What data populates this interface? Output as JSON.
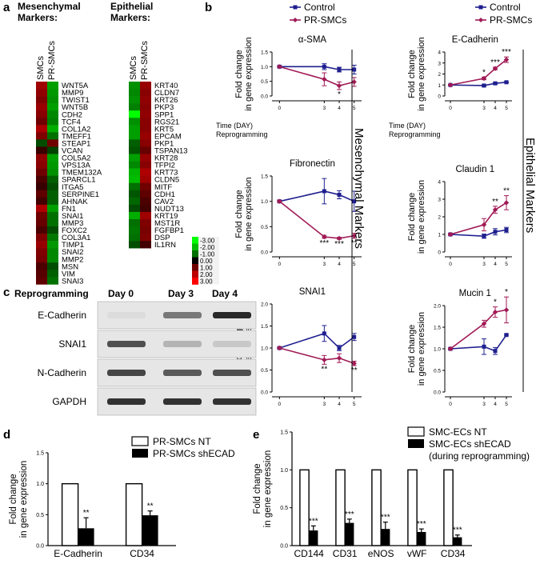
{
  "panel_letters": {
    "a": "a",
    "b": "b",
    "c": "c",
    "d": "d",
    "e": "e"
  },
  "heatmap": {
    "mes_title_1": "Mesenchymal",
    "mes_title_2": "Markers:",
    "epi_title_1": "Epithelial",
    "epi_title_2": "Markers:",
    "col_labels": [
      "SMCs",
      "PR-SMCs"
    ],
    "mes_genes": [
      "WNT5A",
      "MMP9",
      "TWIST1",
      "WNT5B",
      "CDH2",
      "TCF4",
      "COL1A2",
      "TMEFF1",
      "STEAP1",
      "VCAN",
      "COL5A2",
      "VPS13A",
      "TMEM132A",
      "SPARCL1",
      "ITGA5",
      "SERPINE1",
      "AHNAK",
      "FN1",
      "SNAI1",
      "MMP3",
      "FOXC2",
      "COL3A1",
      "TIMP1",
      "SNAI2",
      "MMP2",
      "MSN",
      "VIM",
      "SNAI3"
    ],
    "mes_values": [
      [
        1.6,
        -1.6
      ],
      [
        1.4,
        -1.5
      ],
      [
        1.2,
        -1.4
      ],
      [
        1.5,
        -1.6
      ],
      [
        1.3,
        -1.3
      ],
      [
        1.0,
        -1.2
      ],
      [
        1.8,
        -1.8
      ],
      [
        1.2,
        -1.0
      ],
      [
        -0.6,
        1.0
      ],
      [
        0.4,
        -0.5
      ],
      [
        1.4,
        -1.6
      ],
      [
        1.3,
        -1.5
      ],
      [
        1.0,
        -1.4
      ],
      [
        0.6,
        -0.8
      ],
      [
        0.4,
        -0.6
      ],
      [
        0.8,
        -0.8
      ],
      [
        0.5,
        -0.8
      ],
      [
        1.8,
        -1.6
      ],
      [
        1.0,
        -1.0
      ],
      [
        0.9,
        -1.0
      ],
      [
        0.6,
        -0.6
      ],
      [
        1.2,
        -1.1
      ],
      [
        1.5,
        -1.5
      ],
      [
        1.2,
        -1.3
      ],
      [
        1.1,
        -1.3
      ],
      [
        0.6,
        -0.6
      ],
      [
        0.7,
        -0.8
      ],
      [
        0.8,
        -1.0
      ]
    ],
    "epi_genes": [
      "KRT40",
      "CLDN7",
      "KRT26",
      "PKP3",
      "SPP1",
      "RGS21",
      "KRT5",
      "EPCAM",
      "PKP1",
      "TSPAN13",
      "KRT28",
      "TFPI2",
      "KRT73",
      "CLDN5",
      "MITF",
      "CDH1",
      "CAV2",
      "NUDT13",
      "KRT19",
      "MST1R",
      "FGFBP1",
      "DSP",
      "IL1RN"
    ],
    "epi_values": [
      [
        -1.4,
        1.5
      ],
      [
        -1.3,
        1.3
      ],
      [
        -1.4,
        1.4
      ],
      [
        -1.2,
        1.3
      ],
      [
        -3.0,
        1.4
      ],
      [
        -1.4,
        1.3
      ],
      [
        -1.6,
        1.3
      ],
      [
        -1.6,
        1.5
      ],
      [
        -0.8,
        1.3
      ],
      [
        -0.7,
        0.9
      ],
      [
        -1.6,
        1.5
      ],
      [
        -1.3,
        1.3
      ],
      [
        -1.9,
        1.8
      ],
      [
        -2.0,
        1.6
      ],
      [
        -1.0,
        1.0
      ],
      [
        -0.7,
        0.8
      ],
      [
        -0.9,
        0.6
      ],
      [
        -0.6,
        0.5
      ],
      [
        -1.8,
        1.6
      ],
      [
        -1.0,
        1.2
      ],
      [
        -1.1,
        1.1
      ],
      [
        -1.0,
        1.2
      ],
      [
        -0.6,
        0.5
      ]
    ],
    "scale_labels": [
      "-3.00",
      "-2.00",
      "-1.00",
      "0.00",
      "1.00",
      "2.00",
      "3.00"
    ],
    "colors": {
      "low": "#00ff00",
      "mid": "#000000",
      "high": "#ff0000"
    }
  },
  "line_panels": {
    "ylabel_1": "Fold change",
    "ylabel_2": "in gene expression",
    "xlabel_1": "Time (DAY)",
    "xlabel_2": "Reprogramming",
    "legend": [
      "Control",
      "PR-SMCs"
    ],
    "side_label_mes": "Mesenchymal Markers",
    "side_label_epi": "Epithelial  Markers",
    "colors": {
      "control": "#1f1f8f",
      "pr": "#a01a55"
    }
  },
  "chart_data": [
    {
      "type": "line",
      "title": "α-SMA",
      "x": [
        0,
        3,
        4,
        5
      ],
      "ylim": [
        0.0,
        1.5
      ],
      "yticks": [
        "0.0",
        "0.5",
        "1.0",
        "1.5"
      ],
      "series": [
        {
          "name": "Control",
          "values": [
            1.0,
            1.0,
            0.9,
            0.9
          ],
          "err": [
            0.02,
            0.1,
            0.08,
            0.15
          ]
        },
        {
          "name": "PR-SMCs",
          "values": [
            1.0,
            0.57,
            0.35,
            0.48
          ],
          "err": [
            0.02,
            0.22,
            0.13,
            0.15
          ]
        }
      ],
      "annotations": [
        {
          "x": 4,
          "text": "*"
        }
      ]
    },
    {
      "type": "line",
      "title": "E-Cadherin",
      "x": [
        0,
        3,
        4,
        5
      ],
      "ylim": [
        0,
        4
      ],
      "yticks": [
        "0",
        "1",
        "2",
        "3",
        "4"
      ],
      "series": [
        {
          "name": "Control",
          "values": [
            1.0,
            0.95,
            1.15,
            1.25
          ],
          "err": [
            0.05,
            0.08,
            0.08,
            0.05
          ]
        },
        {
          "name": "PR-SMCs",
          "values": [
            1.0,
            1.6,
            2.5,
            3.3
          ],
          "err": [
            0.05,
            0.12,
            0.12,
            0.25
          ]
        }
      ],
      "annotations": [
        {
          "x": 3,
          "text": "*"
        },
        {
          "x": 4,
          "text": "***"
        },
        {
          "x": 5,
          "text": "***"
        }
      ]
    },
    {
      "type": "line",
      "title": "Fibronectin",
      "x": [
        0,
        3,
        4,
        5
      ],
      "ylim": [
        0.0,
        1.5
      ],
      "yticks": [
        "0.0",
        "0.5",
        "1.0",
        "1.5"
      ],
      "series": [
        {
          "name": "Control",
          "values": [
            1.0,
            1.2,
            1.13,
            1.0
          ],
          "err": [
            0.02,
            0.25,
            0.08,
            0.2
          ]
        },
        {
          "name": "PR-SMCs",
          "values": [
            1.0,
            0.3,
            0.27,
            0.32
          ],
          "err": [
            0.02,
            0.03,
            0.02,
            0.05
          ]
        }
      ],
      "annotations": [
        {
          "x": 3,
          "text": "***"
        },
        {
          "x": 4,
          "text": "***"
        },
        {
          "x": 5,
          "text": "**"
        }
      ]
    },
    {
      "type": "line",
      "title": "Claudin 1",
      "x": [
        0,
        3,
        4,
        5
      ],
      "ylim": [
        0,
        4
      ],
      "yticks": [
        "0",
        "1",
        "2",
        "3",
        "4"
      ],
      "series": [
        {
          "name": "Control",
          "values": [
            1.0,
            0.9,
            1.15,
            1.25
          ],
          "err": [
            0.05,
            0.12,
            0.18,
            0.15
          ]
        },
        {
          "name": "PR-SMCs",
          "values": [
            1.0,
            1.55,
            2.4,
            2.8
          ],
          "err": [
            0.05,
            0.35,
            0.2,
            0.4
          ]
        }
      ],
      "annotations": [
        {
          "x": 4,
          "text": "**"
        },
        {
          "x": 5,
          "text": "**"
        }
      ]
    },
    {
      "type": "line",
      "title": "SNAI1",
      "x": [
        0,
        3,
        4,
        5
      ],
      "ylim": [
        0.0,
        2.0
      ],
      "yticks": [
        "0.0",
        "0.5",
        "1.0",
        "1.5",
        "2.0"
      ],
      "series": [
        {
          "name": "Control",
          "values": [
            1.0,
            1.33,
            1.0,
            1.25
          ],
          "err": [
            0.02,
            0.18,
            0.06,
            0.08
          ]
        },
        {
          "name": "PR-SMCs",
          "values": [
            1.0,
            0.73,
            0.77,
            0.65
          ],
          "err": [
            0.02,
            0.1,
            0.1,
            0.05
          ]
        }
      ],
      "annotations": [
        {
          "x": 3,
          "text": "**"
        },
        {
          "x": 5,
          "text": "**"
        }
      ]
    },
    {
      "type": "line",
      "title": "Mucin 1",
      "x": [
        0,
        3,
        4,
        5
      ],
      "ylim": [
        0.0,
        2.0
      ],
      "yticks": [
        "0.0",
        "0.5",
        "1.0",
        "1.5",
        "2.0"
      ],
      "series": [
        {
          "name": "Control",
          "values": [
            1.0,
            1.05,
            0.95,
            1.32
          ],
          "err": [
            0.02,
            0.18,
            0.08,
            0.02
          ]
        },
        {
          "name": "PR-SMCs",
          "values": [
            1.0,
            1.58,
            1.85,
            1.9
          ],
          "err": [
            0.02,
            0.08,
            0.12,
            0.3
          ]
        }
      ],
      "annotations": [
        {
          "x": 4,
          "text": "*"
        },
        {
          "x": 5,
          "text": "*"
        }
      ]
    },
    {
      "type": "bar",
      "ylabel": "Fold change\nin gene expression",
      "categories": [
        "E-Cadherin",
        "CD34"
      ],
      "ylim": [
        0,
        1.5
      ],
      "yticks": [
        "0.0",
        "0.5",
        "1.0",
        "1.5"
      ],
      "series": [
        {
          "name": "PR-SMCs NT",
          "values": [
            1.0,
            1.0
          ]
        },
        {
          "name": "PR-SMCs shECAD",
          "values": [
            0.28,
            0.49
          ],
          "err": [
            0.17,
            0.07
          ]
        }
      ],
      "annotations": [
        "**",
        "**"
      ]
    },
    {
      "type": "bar",
      "ylabel": "Fold change\nin gene expression",
      "categories": [
        "CD144",
        "CD31",
        "eNOS",
        "vWF",
        "CD34"
      ],
      "ylim": [
        0,
        1.5
      ],
      "yticks": [
        "0.0",
        "0.5",
        "1.0",
        "1.5"
      ],
      "series": [
        {
          "name": "SMC-ECs NT",
          "values": [
            1.0,
            1.0,
            1.0,
            1.0,
            1.0
          ]
        },
        {
          "name": "SMC-ECs shECAD",
          "values": [
            0.2,
            0.3,
            0.22,
            0.18,
            0.11
          ],
          "err": [
            0.06,
            0.05,
            0.09,
            0.04,
            0.03
          ]
        }
      ],
      "annotations": [
        "***",
        "***",
        "***",
        "***",
        "***"
      ],
      "legend_extra": "(during reprogramming)"
    }
  ],
  "western": {
    "title": "Reprogramming",
    "days": [
      "Day 0",
      "Day 3",
      "Day 4"
    ],
    "rows": [
      "E-Cadherin",
      "SNAI1",
      "N-Cadherin",
      "GAPDH"
    ],
    "intensity": [
      [
        0.05,
        0.55,
        0.95
      ],
      [
        0.75,
        0.25,
        0.15
      ],
      [
        0.8,
        0.7,
        0.75
      ],
      [
        0.9,
        0.9,
        0.9
      ]
    ]
  }
}
